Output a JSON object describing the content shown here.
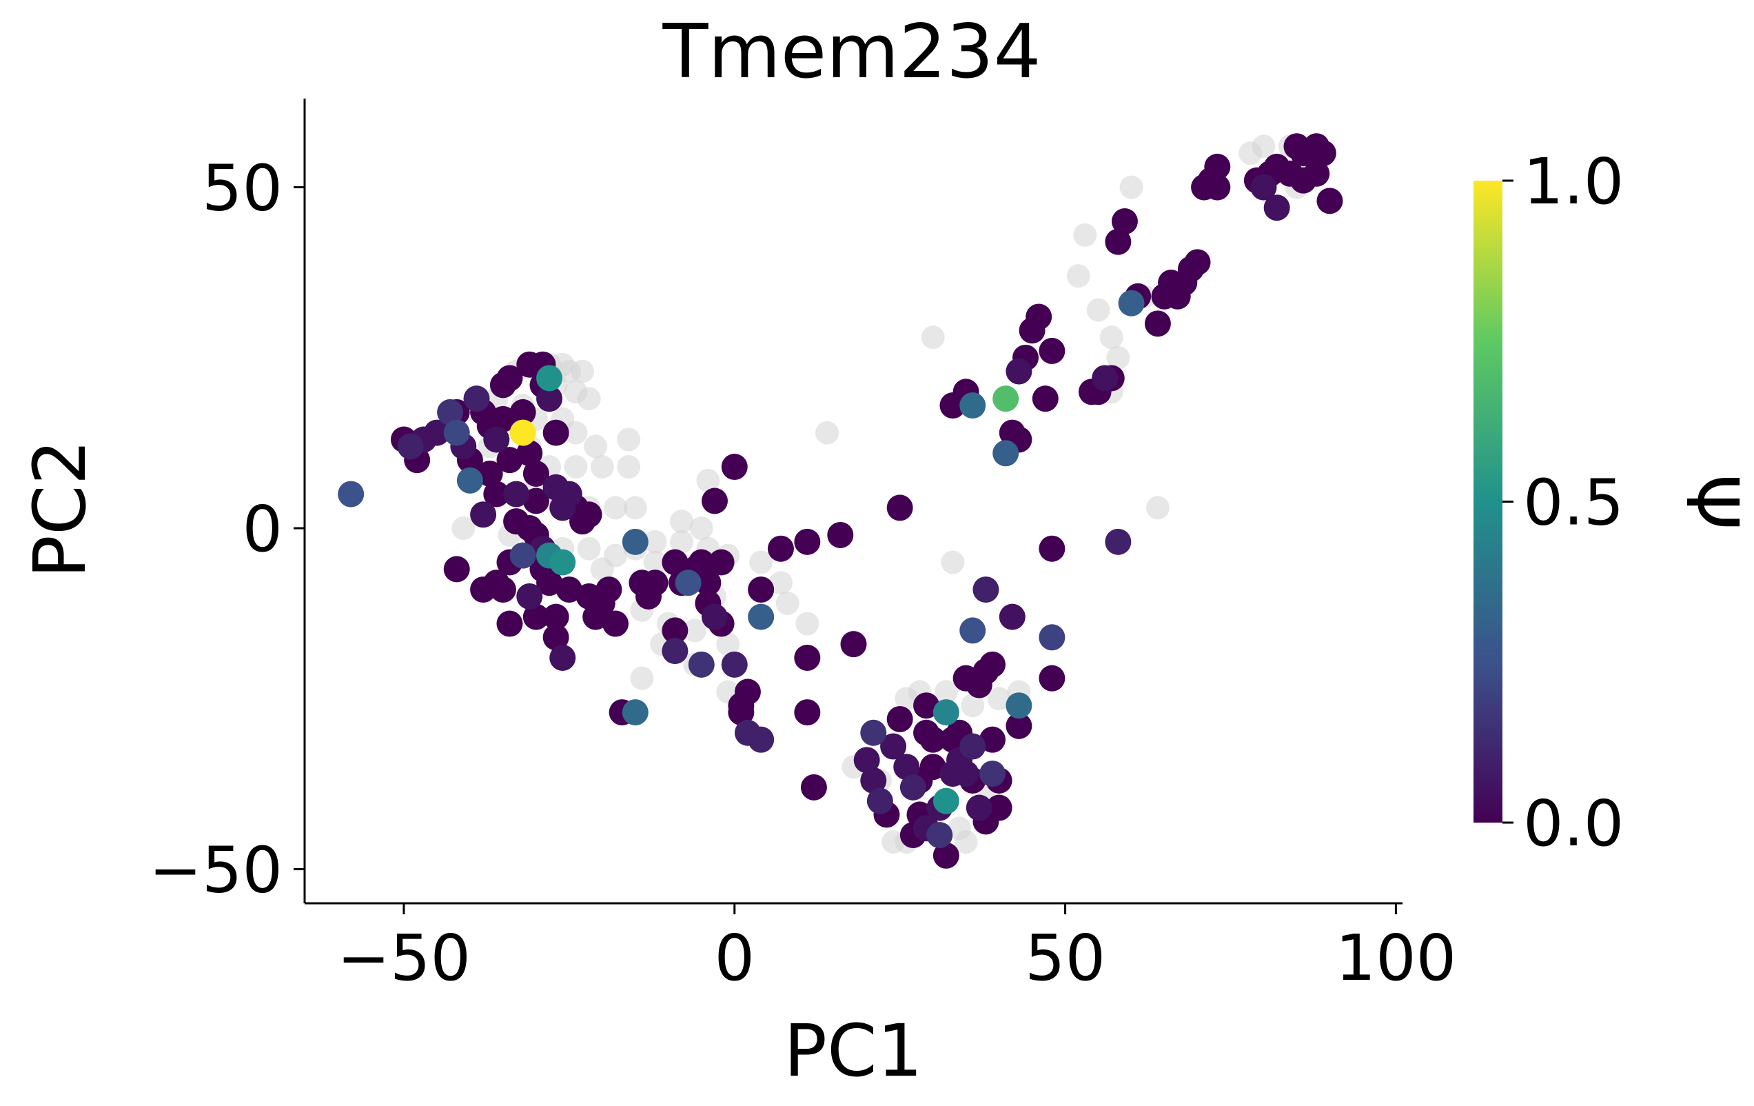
{
  "chart_data": {
    "type": "scatter",
    "title": "Tmem234",
    "xlabel": "PC1",
    "ylabel": "PC2",
    "xlim": [
      -65,
      101
    ],
    "ylim": [
      -55,
      63
    ],
    "xticks": [
      -50,
      0,
      50,
      100
    ],
    "xtick_labels": [
      "−50",
      "0",
      "50",
      "100"
    ],
    "yticks": [
      -50,
      0,
      50
    ],
    "ytick_labels": [
      "−50",
      "0",
      "50"
    ],
    "grid": false,
    "legend": "none",
    "colormap": "viridis",
    "nan_color": "#d3d3d3",
    "colorbar": {
      "label": "Ψ",
      "range": [
        0,
        1
      ],
      "ticks": [
        0,
        0.5,
        1
      ],
      "tick_labels": [
        "0.0",
        "0.5",
        "1.0"
      ],
      "stops": [
        "#440154",
        "#3b528b",
        "#21918c",
        "#5ec962",
        "#fde725"
      ]
    },
    "grey_points": [
      [
        -33,
        23
      ],
      [
        -30,
        24
      ],
      [
        -28,
        24
      ],
      [
        -26,
        24
      ],
      [
        -25,
        23
      ],
      [
        -23,
        23
      ],
      [
        -27,
        21
      ],
      [
        -24,
        20
      ],
      [
        -22,
        19
      ],
      [
        -36,
        19
      ],
      [
        -32,
        18
      ],
      [
        -30,
        16
      ],
      [
        -26,
        16
      ],
      [
        -24,
        14
      ],
      [
        -21,
        12
      ],
      [
        -16,
        13
      ],
      [
        -31,
        12
      ],
      [
        -37,
        12
      ],
      [
        -28,
        9
      ],
      [
        -24,
        9
      ],
      [
        -20,
        9
      ],
      [
        -16,
        9
      ],
      [
        -30,
        6
      ],
      [
        -27,
        4
      ],
      [
        -22,
        3
      ],
      [
        -18,
        3
      ],
      [
        -15,
        3
      ],
      [
        -41,
        0
      ],
      [
        -34,
        -1
      ],
      [
        -30,
        -3
      ],
      [
        -26,
        -3
      ],
      [
        -22,
        -3
      ],
      [
        -18,
        -4
      ],
      [
        -15,
        -3
      ],
      [
        -12,
        -2
      ],
      [
        -8,
        -2
      ],
      [
        -4,
        -3
      ],
      [
        -1,
        -4
      ],
      [
        4,
        -5
      ],
      [
        7,
        -8
      ],
      [
        8,
        -11
      ],
      [
        -20,
        -6
      ],
      [
        -12,
        -5
      ],
      [
        -7,
        -8
      ],
      [
        -3,
        -10
      ],
      [
        -14,
        -12
      ],
      [
        -10,
        -14
      ],
      [
        -6,
        -15
      ],
      [
        -1,
        -17
      ],
      [
        -11,
        -17
      ],
      [
        -6,
        -20
      ],
      [
        -14,
        -22
      ],
      [
        -1,
        -24
      ],
      [
        -4,
        7
      ],
      [
        -5,
        0
      ],
      [
        -8,
        1
      ],
      [
        11,
        -14
      ],
      [
        14,
        14
      ],
      [
        30,
        28
      ],
      [
        33,
        -5
      ],
      [
        64,
        3
      ],
      [
        52,
        37
      ],
      [
        53,
        43
      ],
      [
        57,
        28
      ],
      [
        57,
        20
      ],
      [
        55,
        32
      ],
      [
        60,
        50
      ],
      [
        59,
        45
      ],
      [
        62,
        34
      ],
      [
        58,
        25
      ],
      [
        78,
        55
      ],
      [
        80,
        56
      ],
      [
        81,
        52
      ],
      [
        84,
        56
      ],
      [
        85,
        50
      ],
      [
        87,
        52
      ],
      [
        26,
        -25
      ],
      [
        28,
        -24
      ],
      [
        32,
        -24
      ],
      [
        36,
        -26
      ],
      [
        40,
        -25
      ],
      [
        43,
        -24
      ],
      [
        20,
        -34
      ],
      [
        18,
        -35
      ],
      [
        22,
        -37
      ],
      [
        38,
        -38
      ],
      [
        40,
        -37
      ],
      [
        30,
        -42
      ],
      [
        34,
        -44
      ],
      [
        26,
        -46
      ],
      [
        35,
        -46
      ],
      [
        24,
        -46
      ]
    ],
    "points": [
      [
        -58,
        5,
        0.25
      ],
      [
        -50,
        13,
        0.0
      ],
      [
        -49,
        12,
        0.1
      ],
      [
        -48,
        10,
        0.0
      ],
      [
        -47,
        13,
        0.05
      ],
      [
        -45,
        14,
        0.05
      ],
      [
        -43,
        17,
        0.15
      ],
      [
        -42,
        17,
        0.0
      ],
      [
        -42,
        14,
        0.22
      ],
      [
        -41,
        12,
        0.05
      ],
      [
        -40,
        10,
        0.0
      ],
      [
        -40,
        7,
        0.3
      ],
      [
        -39,
        19,
        0.1
      ],
      [
        -38,
        17,
        0.0
      ],
      [
        -38,
        2,
        0.05
      ],
      [
        -37,
        15,
        0.0
      ],
      [
        -37,
        8,
        0.0
      ],
      [
        -36,
        5,
        0.0
      ],
      [
        -36,
        13,
        0.05
      ],
      [
        -35,
        16,
        0.0
      ],
      [
        -35,
        21,
        0.0
      ],
      [
        -34,
        22,
        0.0
      ],
      [
        -34,
        10,
        0.0
      ],
      [
        -33,
        5,
        0.05
      ],
      [
        -33,
        1,
        0.0
      ],
      [
        -32,
        14,
        1.0
      ],
      [
        -32,
        17,
        0.0
      ],
      [
        -31,
        24,
        0.0
      ],
      [
        -31,
        11,
        0.0
      ],
      [
        -30,
        8,
        0.0
      ],
      [
        -30,
        4,
        0.0
      ],
      [
        -29,
        24,
        0.0
      ],
      [
        -29,
        21,
        0.0
      ],
      [
        -28,
        22,
        0.5
      ],
      [
        -28,
        19,
        0.05
      ],
      [
        -27,
        14,
        0.0
      ],
      [
        -27,
        6,
        0.05
      ],
      [
        -26,
        3,
        0.05
      ],
      [
        -25,
        5,
        0.05
      ],
      [
        -24,
        3,
        0.0
      ],
      [
        -23,
        1,
        0.0
      ],
      [
        -22,
        2,
        0.0
      ],
      [
        -31,
        0,
        0.0
      ],
      [
        -30,
        -1,
        0.0
      ],
      [
        -29,
        -3,
        0.05
      ],
      [
        -28,
        -4,
        0.45
      ],
      [
        -26,
        -5,
        0.5
      ],
      [
        -29,
        -6,
        0.0
      ],
      [
        -28,
        -8,
        0.0
      ],
      [
        -25,
        -9,
        0.0
      ],
      [
        -32,
        -4,
        0.2
      ],
      [
        -34,
        -5,
        0.0
      ],
      [
        -36,
        -8,
        0.0
      ],
      [
        -38,
        -9,
        0.0
      ],
      [
        -42,
        -6,
        0.0
      ],
      [
        -35,
        -9,
        0.0
      ],
      [
        -31,
        -10,
        0.05
      ],
      [
        -30,
        -13,
        0.0
      ],
      [
        -27,
        -13,
        0.0
      ],
      [
        -22,
        -10,
        0.0
      ],
      [
        -21,
        -13,
        0.0
      ],
      [
        -20,
        -11,
        0.0
      ],
      [
        -19,
        -9,
        0.0
      ],
      [
        -18,
        -14,
        0.0
      ],
      [
        -15,
        -2,
        0.3
      ],
      [
        -14,
        -8,
        0.0
      ],
      [
        -13,
        -10,
        0.0
      ],
      [
        -12,
        -8,
        0.0
      ],
      [
        -9,
        -5,
        0.0
      ],
      [
        -8,
        -8,
        0.0
      ],
      [
        -7,
        -8,
        0.25
      ],
      [
        -6,
        -6,
        0.0
      ],
      [
        -5,
        -5,
        0.0
      ],
      [
        -4,
        -8,
        0.0
      ],
      [
        -4,
        -11,
        0.0
      ],
      [
        -3,
        -13,
        0.05
      ],
      [
        -2,
        -5,
        0.0
      ],
      [
        -2,
        -14,
        0.0
      ],
      [
        -3,
        4,
        0.0
      ],
      [
        0,
        9,
        0.0
      ],
      [
        -9,
        -15,
        0.0
      ],
      [
        -9,
        -18,
        0.1
      ],
      [
        -5,
        -20,
        0.15
      ],
      [
        0,
        -20,
        0.1
      ],
      [
        2,
        -24,
        0.0
      ],
      [
        1,
        -26,
        0.0
      ],
      [
        1,
        -27,
        0.0
      ],
      [
        2,
        -30,
        0.1
      ],
      [
        4,
        -31,
        0.1
      ],
      [
        4,
        -9,
        0.0
      ],
      [
        4,
        -13,
        0.3
      ],
      [
        7,
        -3,
        0.0
      ],
      [
        11,
        -19,
        0.0
      ],
      [
        11,
        -27,
        0.0
      ],
      [
        12,
        -38,
        0.0
      ],
      [
        11,
        -2,
        0.0
      ],
      [
        16,
        -1,
        0.0
      ],
      [
        18,
        -17,
        0.0
      ],
      [
        25,
        3,
        0.0
      ],
      [
        -34,
        -14,
        0.0
      ],
      [
        -27,
        -16,
        0.0
      ],
      [
        -26,
        -19,
        0.05
      ],
      [
        -17,
        -27,
        0.0
      ],
      [
        -15,
        -27,
        0.35
      ],
      [
        28,
        -37,
        0.0
      ],
      [
        21,
        -30,
        0.15
      ],
      [
        20,
        -34,
        0.05
      ],
      [
        21,
        -37,
        0.05
      ],
      [
        22,
        -40,
        0.1
      ],
      [
        23,
        -42,
        0.0
      ],
      [
        24,
        -32,
        0.05
      ],
      [
        25,
        -28,
        0.0
      ],
      [
        26,
        -35,
        0.05
      ],
      [
        27,
        -38,
        0.1
      ],
      [
        27,
        -45,
        0.0
      ],
      [
        28,
        -42,
        0.0
      ],
      [
        29,
        -26,
        0.0
      ],
      [
        29,
        -30,
        0.0
      ],
      [
        29,
        -44,
        0.05
      ],
      [
        30,
        -31,
        0.0
      ],
      [
        30,
        -35,
        0.0
      ],
      [
        31,
        -41,
        0.05
      ],
      [
        31,
        -45,
        0.15
      ],
      [
        32,
        -27,
        0.45
      ],
      [
        32,
        -40,
        0.5
      ],
      [
        32,
        -48,
        0.0
      ],
      [
        33,
        -31,
        0.0
      ],
      [
        33,
        -36,
        0.05
      ],
      [
        34,
        -30,
        0.0
      ],
      [
        34,
        -34,
        0.05
      ],
      [
        35,
        -22,
        0.0
      ],
      [
        35,
        -36,
        0.05
      ],
      [
        36,
        -32,
        0.1
      ],
      [
        36,
        -37,
        0.0
      ],
      [
        37,
        -23,
        0.0
      ],
      [
        37,
        -41,
        0.05
      ],
      [
        38,
        -21,
        0.0
      ],
      [
        38,
        -43,
        0.0
      ],
      [
        39,
        -31,
        0.0
      ],
      [
        39,
        -36,
        0.15
      ],
      [
        40,
        -37,
        0.0
      ],
      [
        40,
        -41,
        0.0
      ],
      [
        36,
        -15,
        0.25
      ],
      [
        38,
        -9,
        0.1
      ],
      [
        39,
        -20,
        0.0
      ],
      [
        42,
        -13,
        0.05
      ],
      [
        43,
        -26,
        0.35
      ],
      [
        43,
        -29,
        0.0
      ],
      [
        48,
        -16,
        0.2
      ],
      [
        48,
        -22,
        0.0
      ],
      [
        48,
        -3,
        0.0
      ],
      [
        58,
        -2,
        0.1
      ],
      [
        35,
        20,
        0.0
      ],
      [
        36,
        18,
        0.35
      ],
      [
        33,
        18,
        0.0
      ],
      [
        41,
        19,
        0.7
      ],
      [
        41,
        11,
        0.3
      ],
      [
        42,
        14,
        0.0
      ],
      [
        43,
        13,
        0.0
      ],
      [
        43,
        23,
        0.05
      ],
      [
        44,
        25,
        0.0
      ],
      [
        45,
        29,
        0.0
      ],
      [
        46,
        31,
        0.0
      ],
      [
        47,
        19,
        0.0
      ],
      [
        48,
        26,
        0.0
      ],
      [
        54,
        20,
        0.0
      ],
      [
        55,
        20,
        0.0
      ],
      [
        56,
        22,
        0.05
      ],
      [
        57,
        22,
        0.0
      ],
      [
        58,
        42,
        0.0
      ],
      [
        59,
        45,
        0.0
      ],
      [
        60,
        33,
        0.3
      ],
      [
        61,
        34,
        0.0
      ],
      [
        64,
        30,
        0.0
      ],
      [
        65,
        34,
        0.0
      ],
      [
        66,
        36,
        0.0
      ],
      [
        67,
        34,
        0.0
      ],
      [
        68,
        36,
        0.0
      ],
      [
        69,
        38,
        0.0
      ],
      [
        70,
        39,
        0.0
      ],
      [
        71,
        50,
        0.0
      ],
      [
        72,
        51,
        0.0
      ],
      [
        73,
        50,
        0.0
      ],
      [
        73,
        53,
        0.0
      ],
      [
        79,
        51,
        0.0
      ],
      [
        80,
        50,
        0.05
      ],
      [
        81,
        52,
        0.0
      ],
      [
        82,
        53,
        0.0
      ],
      [
        82,
        47,
        0.05
      ],
      [
        84,
        52,
        0.0
      ],
      [
        85,
        56,
        0.0
      ],
      [
        86,
        55,
        0.0
      ],
      [
        86,
        51,
        0.0
      ],
      [
        88,
        52,
        0.0
      ],
      [
        88,
        56,
        0.0
      ],
      [
        89,
        55,
        0.0
      ],
      [
        90,
        48,
        0.0
      ]
    ]
  }
}
